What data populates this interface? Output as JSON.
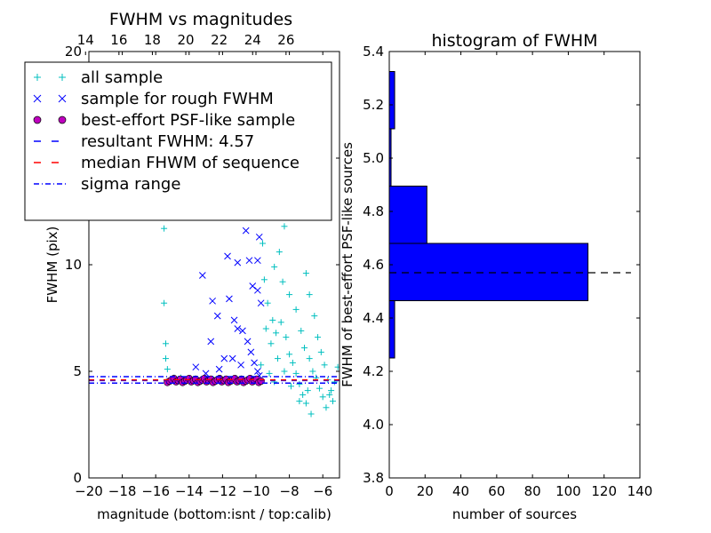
{
  "chart_data": [
    {
      "type": "scatter",
      "title": "FWHM vs magnitudes",
      "xlabel": "magnitude (bottom:isnt / top:calib)",
      "ylabel": "FWHM (pix)",
      "xlim": [
        -20,
        -5
      ],
      "ylim": [
        0,
        20
      ],
      "x_ticks": [
        "−20",
        "−18",
        "−16",
        "−14",
        "−12",
        "−10",
        "−8",
        "−6"
      ],
      "y_ticks": [
        "0",
        "5",
        "10",
        "15",
        "20"
      ],
      "top_ticks": [
        "14",
        "16",
        "18",
        "20",
        "22",
        "24",
        "26"
      ],
      "top_axis": {
        "magnitude_offset": 34.2
      },
      "series": [
        {
          "name": "all sample",
          "marker": "plus",
          "color": "#00bfbf",
          "points": [
            [
              -15.5,
              11.7
            ],
            [
              -15.5,
              8.2
            ],
            [
              -15.4,
              6.3
            ],
            [
              -15.4,
              5.6
            ],
            [
              -15.3,
              5.1
            ],
            [
              -14.9,
              4.7
            ],
            [
              -14.5,
              4.7
            ],
            [
              -14.0,
              4.6
            ],
            [
              -13.5,
              4.6
            ],
            [
              -13.0,
              4.6
            ],
            [
              -12.5,
              4.6
            ],
            [
              -12.0,
              4.6
            ],
            [
              -11.5,
              4.6
            ],
            [
              -11.0,
              4.5
            ],
            [
              -10.5,
              4.6
            ],
            [
              -10.0,
              4.6
            ],
            [
              -9.8,
              12.6
            ],
            [
              -9.6,
              11.0
            ],
            [
              -9.5,
              9.3
            ],
            [
              -9.3,
              8.2
            ],
            [
              -9.0,
              7.4
            ],
            [
              -8.8,
              6.8
            ],
            [
              -8.5,
              7.3
            ],
            [
              -8.2,
              6.6
            ],
            [
              -8.0,
              5.8
            ],
            [
              -7.8,
              5.4
            ],
            [
              -7.6,
              4.9
            ],
            [
              -7.4,
              4.4
            ],
            [
              -7.2,
              3.9
            ],
            [
              -7.0,
              3.5
            ],
            [
              -8.6,
              10.6
            ],
            [
              -8.3,
              11.8
            ],
            [
              -8.1,
              13.2
            ],
            [
              -7.9,
              15.2
            ],
            [
              -7.7,
              17.8
            ],
            [
              -7.5,
              19.2
            ],
            [
              -8.4,
              9.2
            ],
            [
              -8.0,
              8.6
            ],
            [
              -7.6,
              7.9
            ],
            [
              -7.3,
              6.9
            ],
            [
              -7.1,
              6.1
            ],
            [
              -6.8,
              5.6
            ],
            [
              -6.6,
              5.0
            ],
            [
              -6.4,
              4.7
            ],
            [
              -6.2,
              4.2
            ],
            [
              -6.0,
              3.8
            ],
            [
              -5.8,
              3.3
            ],
            [
              -5.6,
              3.9
            ],
            [
              -5.3,
              4.5
            ],
            [
              -5.1,
              5.2
            ],
            [
              -6.7,
              3.0
            ],
            [
              -7.4,
              3.6
            ],
            [
              -7.9,
              4.3
            ],
            [
              -8.3,
              5.0
            ],
            [
              -8.7,
              5.6
            ],
            [
              -9.1,
              6.3
            ],
            [
              -9.4,
              7.0
            ],
            [
              -8.9,
              9.9
            ],
            [
              -8.5,
              12.4
            ],
            [
              -8.2,
              14.4
            ],
            [
              -7.8,
              16.5
            ],
            [
              -7.2,
              18.9
            ],
            [
              -9.7,
              5.3
            ],
            [
              -9.2,
              4.9
            ],
            [
              -8.9,
              4.5
            ],
            [
              -7.0,
              9.6
            ],
            [
              -6.8,
              8.6
            ],
            [
              -6.5,
              7.6
            ],
            [
              -6.3,
              6.6
            ],
            [
              -6.1,
              5.9
            ],
            [
              -5.9,
              5.3
            ],
            [
              -5.7,
              4.6
            ],
            [
              -5.5,
              4.1
            ],
            [
              -5.4,
              3.6
            ],
            [
              -6.9,
              4.1
            ]
          ]
        },
        {
          "name": "sample for rough FWHM",
          "marker": "x",
          "color": "#0000ff",
          "points": [
            [
              -12.9,
              14.5
            ],
            [
              -11.7,
              14.2
            ],
            [
              -11.6,
              12.9
            ],
            [
              -11.3,
              15.6
            ],
            [
              -11.1,
              12.8
            ],
            [
              -10.8,
              14.1
            ],
            [
              -10.6,
              11.6
            ],
            [
              -10.4,
              10.2
            ],
            [
              -10.2,
              9.0
            ],
            [
              -9.9,
              8.8
            ],
            [
              -9.7,
              8.2
            ],
            [
              -11.7,
              10.4
            ],
            [
              -11.1,
              10.1
            ],
            [
              -13.2,
              9.5
            ],
            [
              -12.6,
              8.3
            ],
            [
              -12.3,
              7.6
            ],
            [
              -11.6,
              8.4
            ],
            [
              -11.3,
              7.4
            ],
            [
              -11.1,
              7.0
            ],
            [
              -10.8,
              6.9
            ],
            [
              -10.5,
              6.4
            ],
            [
              -10.3,
              5.9
            ],
            [
              -10.1,
              5.4
            ],
            [
              -9.9,
              5.0
            ],
            [
              -9.8,
              4.8
            ],
            [
              -12.7,
              6.4
            ],
            [
              -12.2,
              5.1
            ],
            [
              -11.9,
              5.6
            ],
            [
              -11.4,
              5.6
            ],
            [
              -10.9,
              5.3
            ],
            [
              -13.6,
              5.2
            ],
            [
              -13.0,
              4.9
            ],
            [
              -10.0,
              12.5
            ],
            [
              -9.8,
              11.3
            ],
            [
              -9.9,
              10.2
            ]
          ]
        },
        {
          "name": "best-effort PSF-like sample",
          "marker": "circle",
          "color": "#bf00bf",
          "x_range": [
            -15.3,
            -9.7
          ],
          "y_center": 4.57
        }
      ],
      "lines": [
        {
          "name": "resultant FWHM: 4.57",
          "y": 4.57,
          "color": "#0000ff",
          "style": "dashed"
        },
        {
          "name": "median FHWM of sequence",
          "y": 4.6,
          "color": "#ff0000",
          "style": "dashed"
        },
        {
          "name": "sigma range",
          "y_values": [
            4.45,
            4.75
          ],
          "color": "#0000ff",
          "style": "dashdot"
        }
      ],
      "legend": {
        "placement": "upper-left",
        "entries": [
          "all sample",
          "sample for rough FWHM",
          "best-effort PSF-like sample",
          "resultant FWHM: 4.57",
          "median FHWM of sequence",
          "sigma range"
        ]
      }
    },
    {
      "type": "bar",
      "orientation": "horizontal",
      "title": "histogram of FWHM",
      "xlabel": "number of sources",
      "ylabel": "FWHM of best-effort PSF-like sources",
      "xlim": [
        0,
        140
      ],
      "ylim": [
        3.8,
        5.4
      ],
      "x_ticks": [
        "0",
        "20",
        "40",
        "60",
        "80",
        "100",
        "120",
        "140"
      ],
      "y_ticks": [
        "3.8",
        "4.0",
        "4.2",
        "4.4",
        "4.6",
        "4.8",
        "5.0",
        "5.2",
        "5.4"
      ],
      "bars": [
        {
          "low": 4.25,
          "high": 4.465,
          "count": 3
        },
        {
          "low": 4.465,
          "high": 4.68,
          "count": 111
        },
        {
          "low": 4.68,
          "high": 4.895,
          "count": 21
        },
        {
          "low": 4.895,
          "high": 5.11,
          "count": 1
        },
        {
          "low": 5.11,
          "high": 5.325,
          "count": 3
        }
      ],
      "color": "#0000ff",
      "reference_line": {
        "y": 4.57,
        "style": "dashed",
        "color": "#000000"
      }
    }
  ]
}
